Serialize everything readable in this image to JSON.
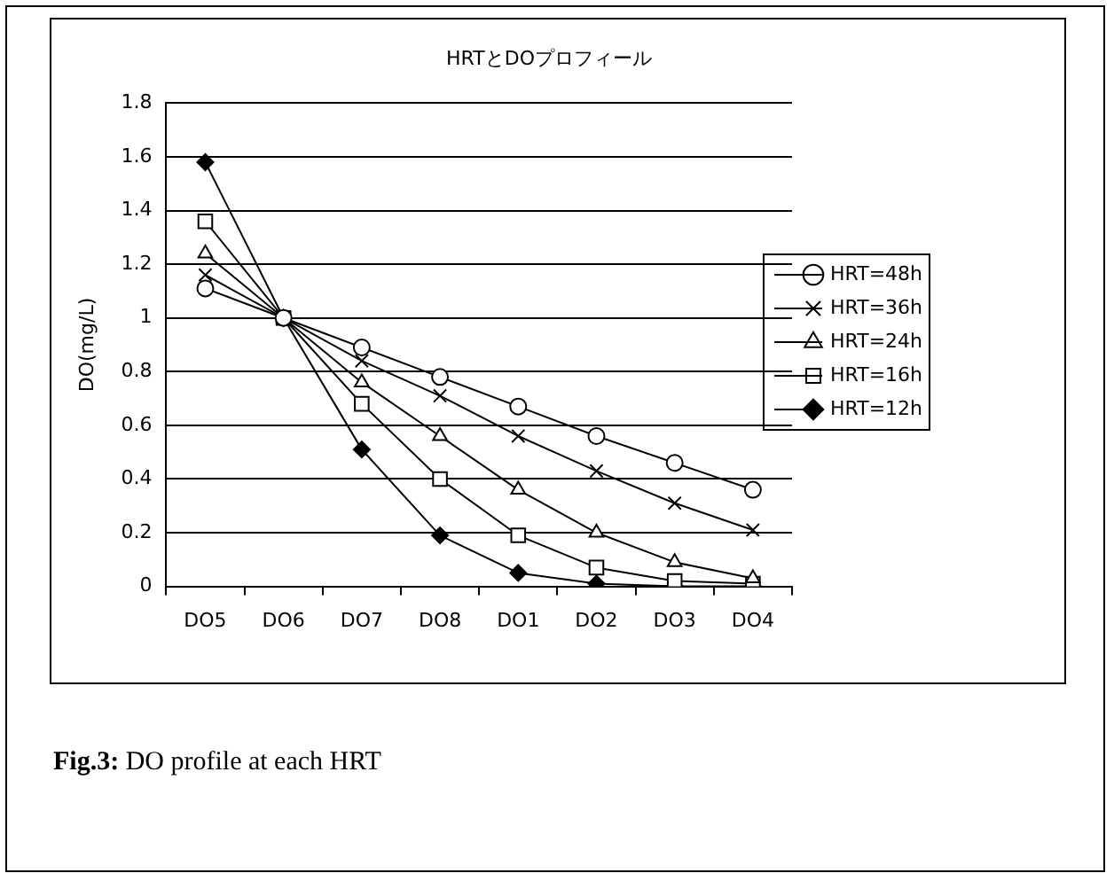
{
  "chart_data": {
    "type": "line",
    "title": "HRTとDOプロフィール",
    "ylabel": "DO(mg/L)",
    "categories": [
      "DO5",
      "DO6",
      "DO7",
      "DO8",
      "DO1",
      "DO2",
      "DO3",
      "DO4"
    ],
    "ylim": [
      0,
      1.8
    ],
    "yticks": [
      0,
      0.2,
      0.4,
      0.6,
      0.8,
      1,
      1.2,
      1.4,
      1.6,
      1.8
    ],
    "grid": "y",
    "legend": "right",
    "line_style": "solid",
    "series": [
      {
        "name": "HRT=48h",
        "color": "#000000",
        "marker": "circle",
        "values": [
          1.11,
          1,
          0.89,
          0.78,
          0.67,
          0.56,
          0.46,
          0.36
        ]
      },
      {
        "name": "HRT=36h",
        "color": "#000000",
        "marker": "cross",
        "values": [
          1.16,
          1,
          0.84,
          0.71,
          0.56,
          0.43,
          0.31,
          0.21
        ]
      },
      {
        "name": "HRT=24h",
        "color": "#000000",
        "marker": "triangle",
        "values": [
          1.24,
          1,
          0.76,
          0.56,
          0.36,
          0.2,
          0.09,
          0.03
        ]
      },
      {
        "name": "HRT=16h",
        "color": "#000000",
        "marker": "square",
        "values": [
          1.36,
          1,
          0.68,
          0.4,
          0.19,
          0.07,
          0.02,
          0.01
        ]
      },
      {
        "name": "HRT=12h",
        "color": "#000000",
        "marker": "diamond",
        "values": [
          1.58,
          1,
          0.51,
          0.19,
          0.05,
          0.01,
          0,
          0
        ]
      }
    ],
    "annotations": [
      "Fig.3: DO profile at each HRT"
    ]
  }
}
